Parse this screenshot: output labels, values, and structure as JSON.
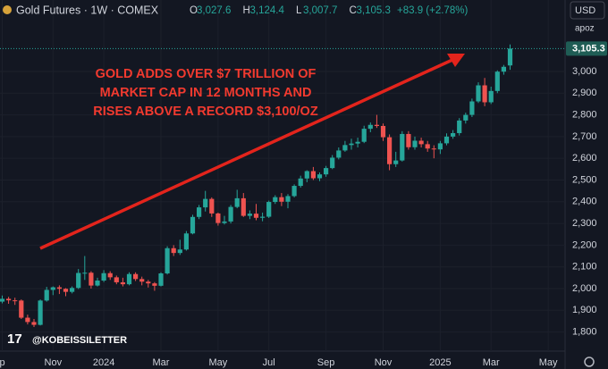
{
  "chart_data": {
    "type": "candlestick",
    "title": "Gold Futures · 1W · COMEX",
    "ohlc_legend": [
      {
        "key": "O",
        "text": "3,027.6"
      },
      {
        "key": "H",
        "text": "3,124.4"
      },
      {
        "key": "L",
        "text": "3,007.7"
      },
      {
        "key": "C",
        "text": "3,105.3"
      }
    ],
    "change": "+83.9 (+2.78%)",
    "annotation": [
      "GOLD ADDS OVER $7 TRILLION OF",
      "MARKET CAP IN 12 MONTHS AND",
      "RISES ABOVE A RECORD $3,100/OZ"
    ],
    "watermark": "@KOBEISSILETTER",
    "logo": "17",
    "currency": "USD",
    "unit_menu": "apoz",
    "up_color": "#26a69a",
    "down_color": "#ef5350",
    "current_price": {
      "value": 3105.3,
      "label": "3,105.3"
    },
    "categories": [
      "p",
      null,
      null,
      null,
      null,
      null,
      null,
      null,
      "Nov",
      null,
      null,
      null,
      null,
      null,
      null,
      null,
      "2024",
      null,
      null,
      null,
      null,
      null,
      null,
      null,
      null,
      "Mar",
      null,
      null,
      null,
      null,
      null,
      null,
      null,
      null,
      "May",
      null,
      null,
      null,
      null,
      null,
      null,
      null,
      "Jul",
      null,
      null,
      null,
      null,
      null,
      null,
      null,
      null,
      "Sep",
      null,
      null,
      null,
      null,
      null,
      null,
      null,
      null,
      "Nov",
      null,
      null,
      null,
      null,
      null,
      null,
      null,
      null,
      "2025",
      null,
      null,
      null,
      null,
      null,
      null,
      null,
      "Mar",
      null,
      null,
      null,
      null,
      null,
      null,
      null,
      null,
      "May",
      null,
      null
    ],
    "open": [
      1940,
      1953,
      1946,
      1945,
      1866,
      1846,
      1833,
      1945,
      1994,
      2006,
      1999,
      1985,
      2003,
      2072,
      2073,
      2014,
      2037,
      2071,
      2052,
      2029,
      2020,
      2067,
      2044,
      2032,
      2024,
      2013,
      2070,
      2186,
      2164,
      2180,
      2254,
      2330,
      2374,
      2413,
      2346,
      2302,
      2309,
      2376,
      2416,
      2335,
      2345,
      2326,
      2331,
      2399,
      2421,
      2400,
      2426,
      2473,
      2507,
      2541,
      2508,
      2526,
      2555,
      2603,
      2636,
      2661,
      2668,
      2676,
      2736,
      2754,
      2749,
      2697,
      2573,
      2590,
      2712,
      2651,
      2681,
      2665,
      2645,
      2641,
      2669,
      2700,
      2716,
      2774,
      2800,
      2862,
      2936,
      2858,
      2910,
      2999,
      3027.6,
      null,
      null,
      null,
      null,
      null,
      null,
      null,
      null
    ],
    "high": [
      1968,
      1962,
      1958,
      1950,
      1880,
      1860,
      1950,
      2008,
      2010,
      2015,
      2002,
      2010,
      2090,
      2150,
      2080,
      2050,
      2085,
      2080,
      2060,
      2050,
      2075,
      2075,
      2055,
      2040,
      2030,
      2075,
      2195,
      2200,
      2225,
      2265,
      2340,
      2385,
      2450,
      2420,
      2350,
      2335,
      2385,
      2455,
      2440,
      2360,
      2390,
      2350,
      2405,
      2430,
      2440,
      2435,
      2480,
      2520,
      2545,
      2560,
      2535,
      2565,
      2615,
      2650,
      2680,
      2690,
      2695,
      2750,
      2765,
      2800,
      2760,
      2710,
      2630,
      2725,
      2725,
      2700,
      2695,
      2680,
      2660,
      2680,
      2715,
      2730,
      2785,
      2810,
      2875,
      2950,
      2970,
      2930,
      3005,
      3030,
      3124.4,
      null,
      null,
      null,
      null,
      null,
      null,
      null,
      null
    ],
    "low": [
      1932,
      1930,
      1925,
      1860,
      1835,
      1823,
      1830,
      1940,
      1970,
      1975,
      1965,
      1978,
      1998,
      2040,
      2000,
      2010,
      2030,
      2040,
      2020,
      2010,
      2015,
      2035,
      2015,
      2005,
      1990,
      2010,
      2065,
      2150,
      2155,
      2175,
      2250,
      2320,
      2355,
      2330,
      2290,
      2295,
      2300,
      2370,
      2330,
      2320,
      2315,
      2310,
      2325,
      2390,
      2380,
      2370,
      2420,
      2465,
      2490,
      2500,
      2495,
      2515,
      2550,
      2595,
      2630,
      2640,
      2650,
      2670,
      2720,
      2740,
      2680,
      2545,
      2560,
      2585,
      2640,
      2640,
      2650,
      2630,
      2600,
      2620,
      2660,
      2690,
      2705,
      2760,
      2790,
      2855,
      2840,
      2850,
      2900,
      2985,
      3007.7,
      null,
      null,
      null,
      null,
      null,
      null,
      null,
      null
    ],
    "close": [
      1953,
      1946,
      1945,
      1866,
      1846,
      1833,
      1945,
      1994,
      2006,
      1999,
      1985,
      2003,
      2072,
      2073,
      2014,
      2037,
      2071,
      2052,
      2029,
      2020,
      2067,
      2044,
      2032,
      2024,
      2013,
      2070,
      2186,
      2164,
      2180,
      2254,
      2330,
      2374,
      2413,
      2346,
      2302,
      2309,
      2376,
      2416,
      2335,
      2345,
      2326,
      2331,
      2399,
      2421,
      2400,
      2426,
      2473,
      2507,
      2541,
      2508,
      2526,
      2555,
      2603,
      2636,
      2661,
      2668,
      2676,
      2736,
      2754,
      2749,
      2697,
      2573,
      2590,
      2712,
      2651,
      2681,
      2665,
      2645,
      2641,
      2669,
      2700,
      2716,
      2774,
      2800,
      2862,
      2936,
      2858,
      2910,
      2999,
      3021.4,
      3105.3,
      null,
      null,
      null,
      null,
      null,
      null,
      null,
      null
    ],
    "ylim": [
      1712,
      3329
    ],
    "yticks": [
      {
        "value": 1800,
        "label": "1,800"
      },
      {
        "value": 1900,
        "label": "1,900"
      },
      {
        "value": 2000,
        "label": "2,000"
      },
      {
        "value": 2100,
        "label": "2,100"
      },
      {
        "value": 2200,
        "label": "2,200"
      },
      {
        "value": 2300,
        "label": "2,300"
      },
      {
        "value": 2400,
        "label": "2,400"
      },
      {
        "value": 2500,
        "label": "2,500"
      },
      {
        "value": 2600,
        "label": "2,600"
      },
      {
        "value": 2700,
        "label": "2,700"
      },
      {
        "value": 2800,
        "label": "2,800"
      },
      {
        "value": 2900,
        "label": "2,900"
      },
      {
        "value": 3000,
        "label": "3,000"
      }
    ],
    "grid": true
  }
}
